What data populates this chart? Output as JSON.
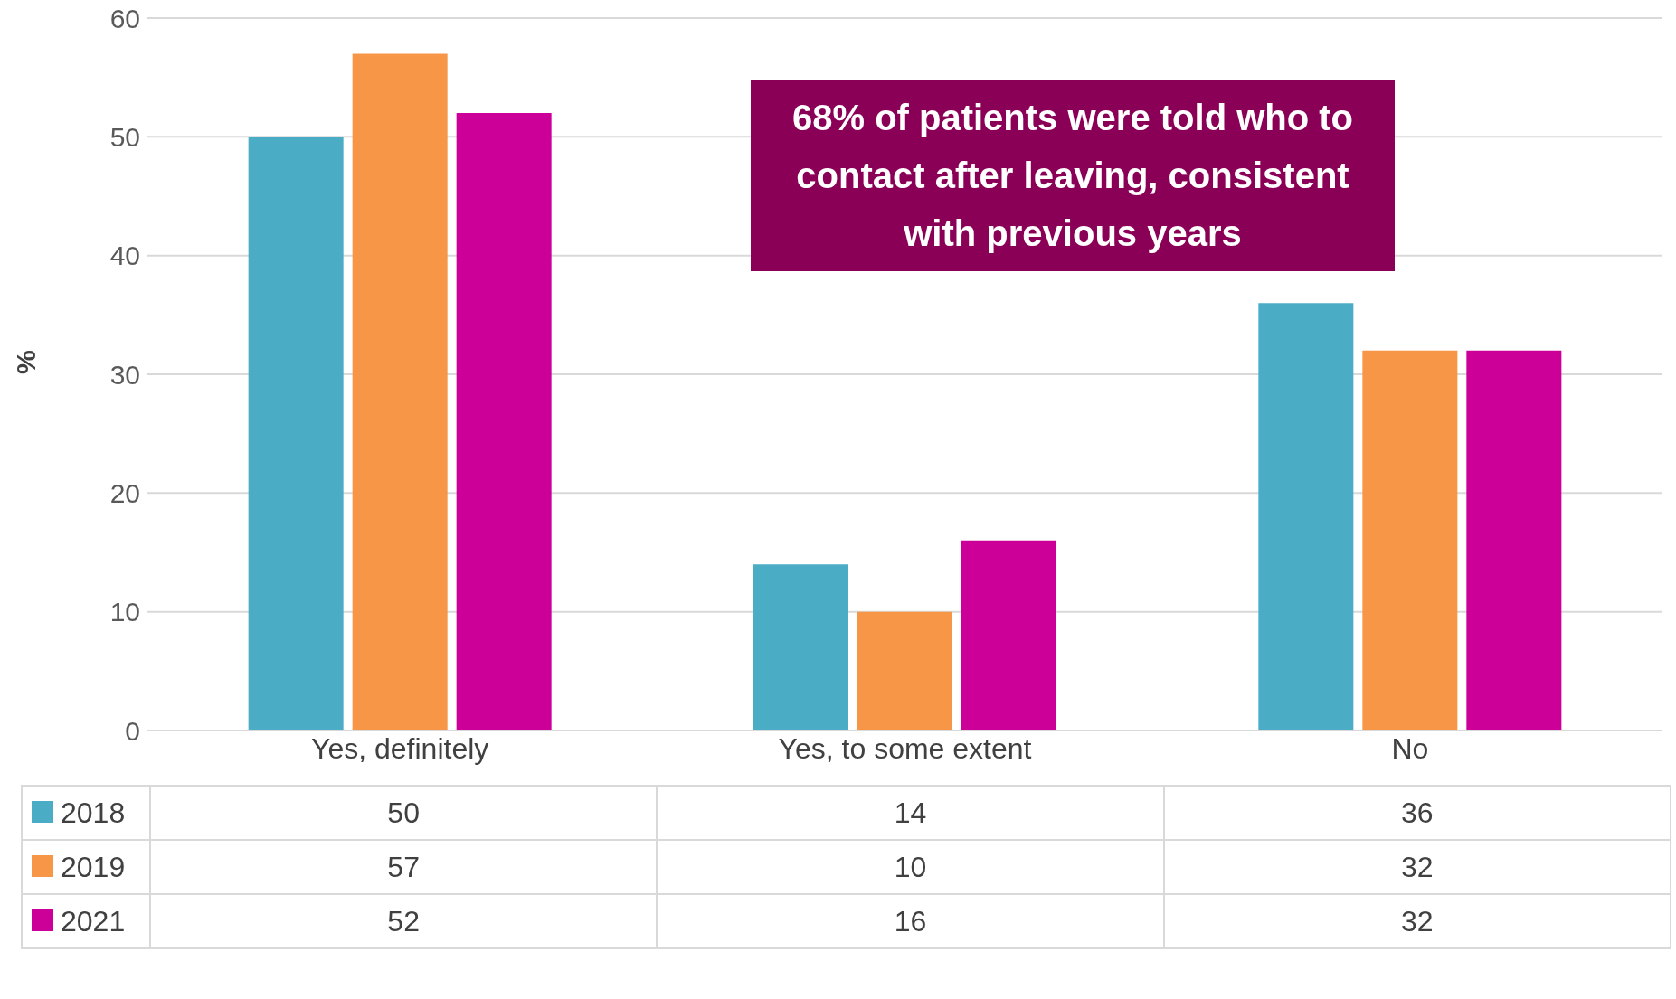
{
  "chart_data": {
    "type": "bar",
    "ylabel": "%",
    "categories": [
      "Yes, definitely",
      "Yes, to some extent",
      "No"
    ],
    "series": [
      {
        "name": "2018",
        "color": "#4bacc6",
        "values": [
          50,
          14,
          36
        ]
      },
      {
        "name": "2019",
        "color": "#f79646",
        "values": [
          57,
          10,
          32
        ]
      },
      {
        "name": "2021",
        "color": "#cc0099",
        "values": [
          52,
          16,
          32
        ]
      }
    ],
    "ylim": [
      0,
      60
    ],
    "yticks": [
      0,
      10,
      20,
      30,
      40,
      50,
      60
    ],
    "grid": "y",
    "legend": "bottom",
    "data_labels": true,
    "annotations": [
      "68% of patients were told who to contact after leaving, consistent with previous years"
    ]
  }
}
